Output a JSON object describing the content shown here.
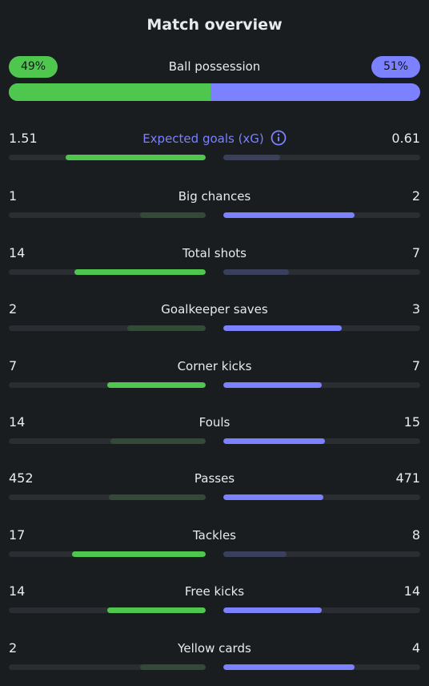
{
  "title": "Match overview",
  "colors": {
    "home": "#4fc74f",
    "away": "#7b81ff",
    "home_weak": "#344a38",
    "away_weak": "#3a3f5c",
    "background": "#1a1d20"
  },
  "possession": {
    "label": "Ball possession",
    "home": "49%",
    "away": "51%",
    "home_fraction": 0.49
  },
  "stats": [
    {
      "label": "Expected goals (xG)",
      "home": "1.51",
      "away": "0.61",
      "home_value": 1.51,
      "away_value": 0.61,
      "accent": true,
      "info_icon": "info-icon"
    },
    {
      "label": "Big chances",
      "home": "1",
      "away": "2",
      "home_value": 1,
      "away_value": 2
    },
    {
      "label": "Total shots",
      "home": "14",
      "away": "7",
      "home_value": 14,
      "away_value": 7
    },
    {
      "label": "Goalkeeper saves",
      "home": "2",
      "away": "3",
      "home_value": 2,
      "away_value": 3
    },
    {
      "label": "Corner kicks",
      "home": "7",
      "away": "7",
      "home_value": 7,
      "away_value": 7
    },
    {
      "label": "Fouls",
      "home": "14",
      "away": "15",
      "home_value": 14,
      "away_value": 15
    },
    {
      "label": "Passes",
      "home": "452",
      "away": "471",
      "home_value": 452,
      "away_value": 471
    },
    {
      "label": "Tackles",
      "home": "17",
      "away": "8",
      "home_value": 17,
      "away_value": 8
    },
    {
      "label": "Free kicks",
      "home": "14",
      "away": "14",
      "home_value": 14,
      "away_value": 14
    },
    {
      "label": "Yellow cards",
      "home": "2",
      "away": "4",
      "home_value": 2,
      "away_value": 4
    }
  ]
}
